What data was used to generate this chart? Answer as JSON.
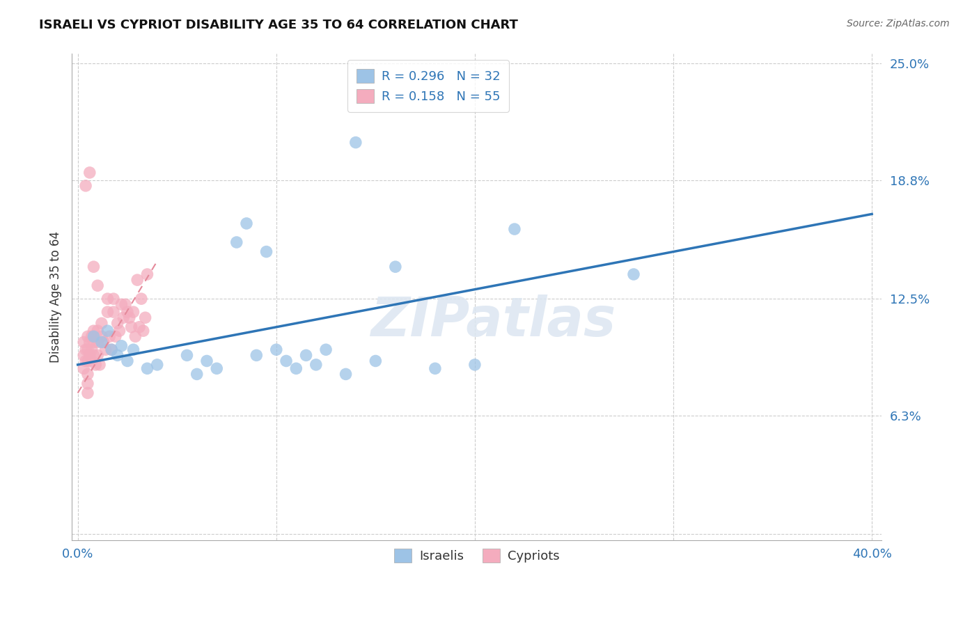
{
  "title": "ISRAELI VS CYPRIOT DISABILITY AGE 35 TO 64 CORRELATION CHART",
  "source": "Source: ZipAtlas.com",
  "ylabel": "Disability Age 35 to 64",
  "xlim": [
    0.0,
    40.0
  ],
  "ylim": [
    0.0,
    25.0
  ],
  "xticks": [
    0.0,
    10.0,
    20.0,
    30.0,
    40.0
  ],
  "yticks": [
    0.0,
    6.3,
    12.5,
    18.8,
    25.0
  ],
  "xtick_labels": [
    "0.0%",
    "",
    "",
    "",
    "40.0%"
  ],
  "ytick_labels": [
    "",
    "6.3%",
    "12.5%",
    "18.8%",
    "25.0%"
  ],
  "israeli_R": 0.296,
  "israeli_N": 32,
  "cypriot_R": 0.158,
  "cypriot_N": 55,
  "israeli_color": "#9DC3E6",
  "cypriot_color": "#F4ACBE",
  "israeli_line_color": "#2E75B6",
  "cypriot_line_color": "#E4899A",
  "legend_label_1": "Israelis",
  "legend_label_2": "Cypriots",
  "watermark": "ZIPatlas",
  "israeli_x": [
    0.8,
    1.2,
    1.5,
    1.7,
    2.0,
    2.2,
    2.5,
    2.8,
    3.5,
    4.0,
    5.5,
    6.0,
    6.5,
    7.0,
    8.5,
    9.0,
    10.0,
    10.5,
    11.0,
    11.5,
    12.0,
    12.5,
    13.5,
    15.0,
    16.0,
    18.0,
    20.0,
    22.0,
    28.0,
    8.0,
    9.5,
    14.0
  ],
  "israeli_y": [
    10.5,
    10.2,
    10.8,
    9.8,
    9.5,
    10.0,
    9.2,
    9.8,
    8.8,
    9.0,
    9.5,
    8.5,
    9.2,
    8.8,
    16.5,
    9.5,
    9.8,
    9.2,
    8.8,
    9.5,
    9.0,
    9.8,
    8.5,
    9.2,
    14.2,
    8.8,
    9.0,
    16.2,
    13.8,
    15.5,
    15.0,
    20.8
  ],
  "cypriot_x": [
    0.3,
    0.3,
    0.3,
    0.4,
    0.4,
    0.5,
    0.5,
    0.5,
    0.5,
    0.5,
    0.5,
    0.6,
    0.6,
    0.7,
    0.7,
    0.7,
    0.8,
    0.8,
    0.8,
    0.9,
    1.0,
    1.0,
    1.0,
    1.1,
    1.2,
    1.2,
    1.3,
    1.4,
    1.5,
    1.5,
    1.6,
    1.7,
    1.8,
    1.8,
    1.9,
    2.0,
    2.1,
    2.2,
    2.3,
    2.4,
    2.5,
    2.6,
    2.7,
    2.8,
    2.9,
    3.0,
    3.1,
    3.2,
    3.3,
    3.4,
    3.5,
    0.4,
    0.6,
    0.8,
    1.0
  ],
  "cypriot_y": [
    10.2,
    9.5,
    8.8,
    9.8,
    9.2,
    10.5,
    9.8,
    9.2,
    8.5,
    8.0,
    7.5,
    10.2,
    9.5,
    10.5,
    9.8,
    9.2,
    10.8,
    10.2,
    9.5,
    9.0,
    10.8,
    10.2,
    9.5,
    9.0,
    11.2,
    10.5,
    10.2,
    9.8,
    12.5,
    11.8,
    10.5,
    9.8,
    12.5,
    11.8,
    10.5,
    11.2,
    10.8,
    12.2,
    11.5,
    12.2,
    11.8,
    11.5,
    11.0,
    11.8,
    10.5,
    13.5,
    11.0,
    12.5,
    10.8,
    11.5,
    13.8,
    18.5,
    19.2,
    14.2,
    13.2
  ],
  "isr_line_x0": 0.0,
  "isr_line_y0": 9.0,
  "isr_line_x1": 40.0,
  "isr_line_y1": 17.0,
  "cyp_line_x0": 0.0,
  "cyp_line_y0": 7.5,
  "cyp_line_x1": 4.0,
  "cyp_line_y1": 14.5
}
